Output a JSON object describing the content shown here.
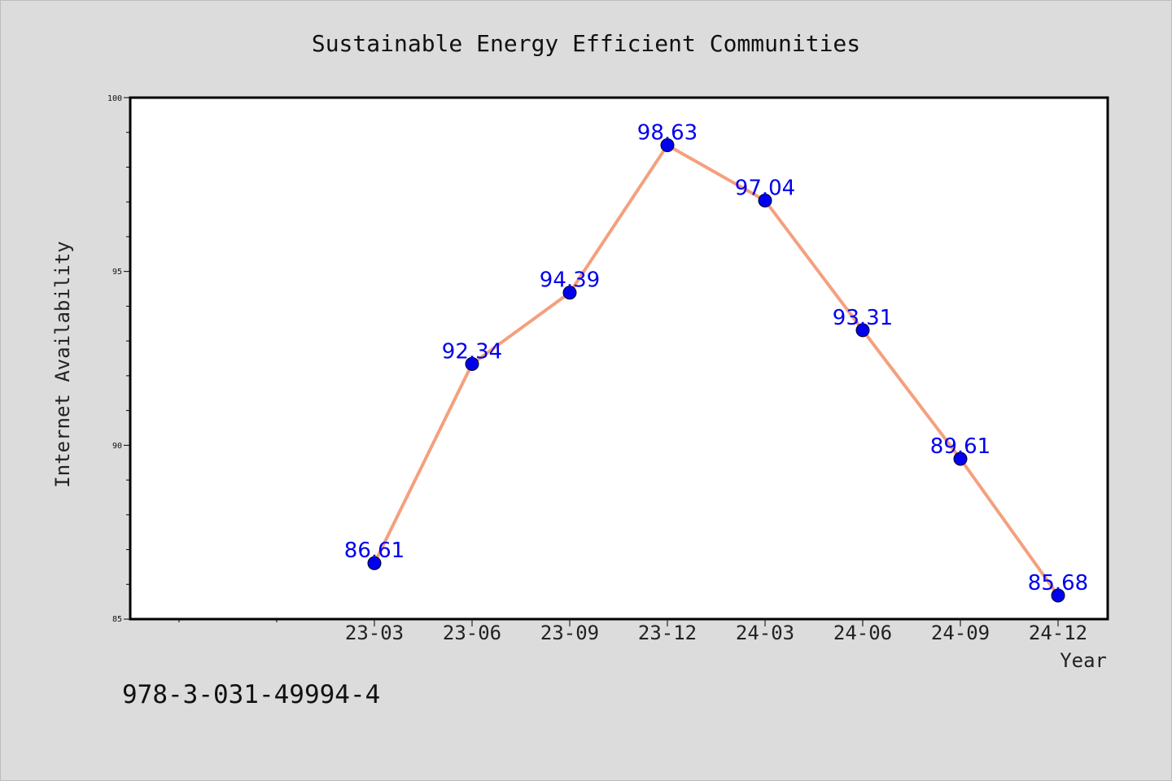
{
  "chart_data": {
    "type": "line",
    "title": "Sustainable Energy Efficient Communities",
    "xlabel": "Year",
    "ylabel": "Internet Availability",
    "categories": [
      "23-03",
      "23-06",
      "23-09",
      "23-12",
      "24-03",
      "24-06",
      "24-09",
      "24-12"
    ],
    "values": [
      86.61,
      92.34,
      94.39,
      98.63,
      97.04,
      93.31,
      89.61,
      85.68
    ],
    "value_labels": [
      "86.61",
      "92.34",
      "94.39",
      "98.63",
      "97.04",
      "93.31",
      "89.61",
      "85.68"
    ],
    "ylim": [
      85,
      100
    ],
    "yticks": [
      "85",
      "90",
      "95",
      "100"
    ],
    "grid": false,
    "line_color": "#f4a07e",
    "marker_color": "#0000ee",
    "label_color": "#0000ee",
    "footer": "978-3-031-49994-4"
  }
}
